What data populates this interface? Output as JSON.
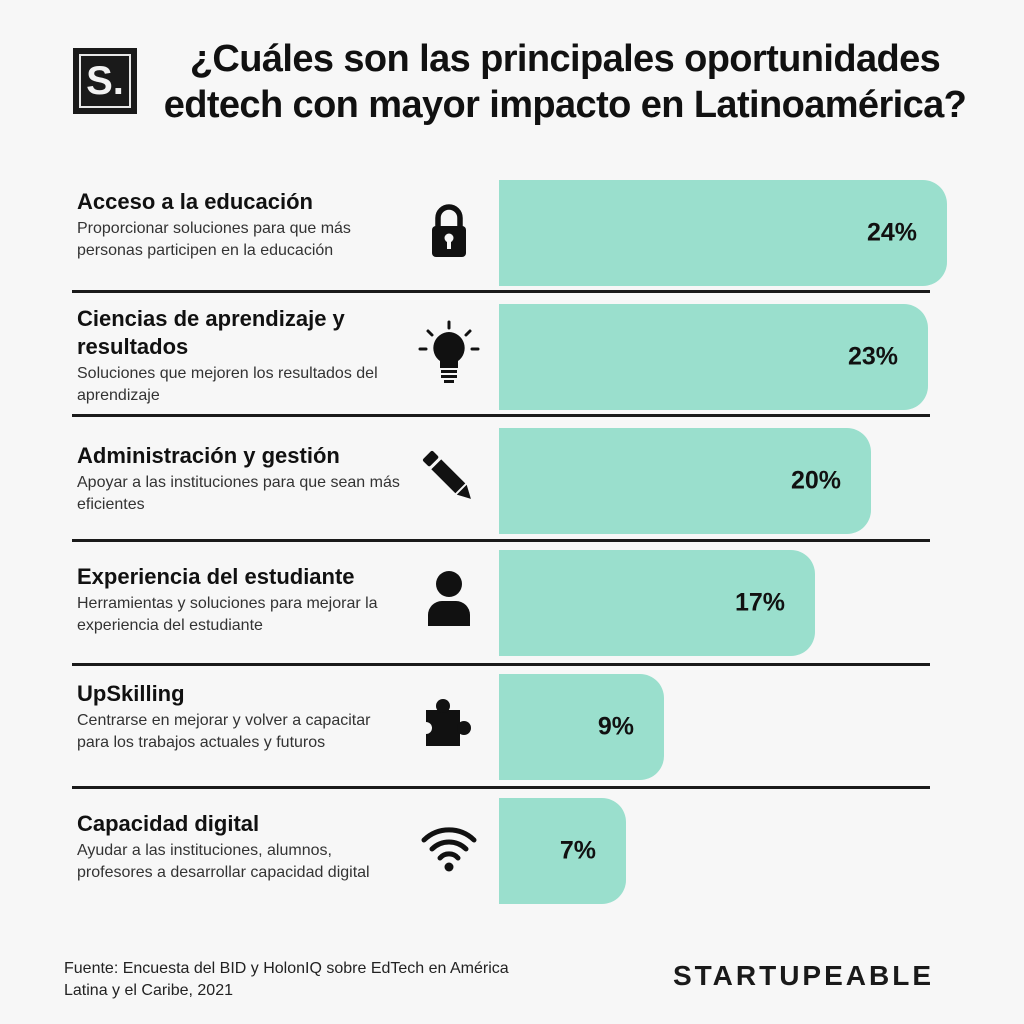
{
  "logo": {
    "text": "S."
  },
  "title": {
    "line1": "¿Cuáles son las principales oportunidades",
    "line2": "edtech con mayor impacto en Latinoamérica?"
  },
  "rows": [
    {
      "title": "Acceso a la educación",
      "description": "Proporcionar soluciones para que más personas participen en la educación",
      "value_label": "24%",
      "icon": "padlock-icon"
    },
    {
      "title": "Ciencias de aprendizaje y resultados",
      "description": "Soluciones que mejoren los resultados del aprendizaje",
      "value_label": "23%",
      "icon": "lightbulb-icon"
    },
    {
      "title": "Administración y gestión",
      "description": "Apoyar a las instituciones para que sean más eficientes",
      "value_label": "20%",
      "icon": "pencil-icon"
    },
    {
      "title": "Experiencia del estudiante",
      "description": "Herramientas y soluciones para mejorar la experiencia del estudiante",
      "value_label": "17%",
      "icon": "user-icon"
    },
    {
      "title": "UpSkilling",
      "description": "Centrarse en mejorar y volver a capacitar para los trabajos actuales y futuros",
      "value_label": "9%",
      "icon": "puzzle-piece-icon"
    },
    {
      "title": "Capacidad digital",
      "description": "Ayudar a las instituciones, alumnos, profesores a desarrollar capacidad digital",
      "value_label": "7%",
      "icon": "wifi-icon"
    }
  ],
  "chart_data": {
    "type": "bar",
    "orientation": "horizontal",
    "title": "¿Cuáles son las principales oportunidades edtech con mayor impacto en Latinoamérica?",
    "categories": [
      "Acceso a la educación",
      "Ciencias de aprendizaje y resultados",
      "Administración y gestión",
      "Experiencia del estudiante",
      "UpSkilling",
      "Capacidad digital"
    ],
    "values": [
      24,
      23,
      20,
      17,
      9,
      7
    ],
    "unit": "%",
    "xlabel": "",
    "ylabel": "",
    "bar_color": "#9adfcd",
    "grid": false,
    "legend": false
  },
  "footer": {
    "source": "Fuente: Encuesta del BID y HolonIQ sobre EdTech en América Latina y el Caribe, 2021",
    "brand": "STARTUPEABLE"
  }
}
